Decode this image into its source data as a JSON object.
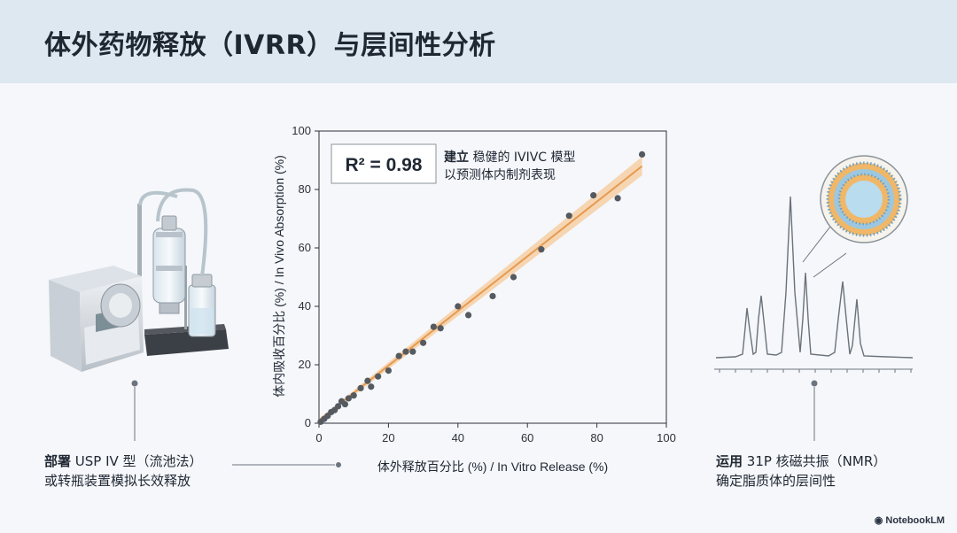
{
  "title": "体外药物释放（IVRR）与层间性分析",
  "left_caption": {
    "bold": "部署",
    "line1": " USP IV 型（流池法）",
    "line2": "或转瓶装置模拟长效释放"
  },
  "right_caption": {
    "bold": "运用",
    "line1": " 31P 核磁共振（NMR）",
    "line2": "确定脂质体的层间性"
  },
  "brand": "NotebookLM",
  "chart_data": {
    "type": "scatter",
    "xlabel": "体外释放百分比 (%) / In Vitro Release (%)",
    "ylabel": "体内吸收百分比 (%) / In Vivo Absorption (%)",
    "xlim": [
      0,
      100
    ],
    "ylim": [
      0,
      100
    ],
    "xticks": [
      0,
      20,
      40,
      60,
      80,
      100
    ],
    "yticks": [
      0,
      20,
      40,
      60,
      80,
      100
    ],
    "grid": false,
    "points": [
      [
        0.5,
        0.5
      ],
      [
        1.5,
        1.5
      ],
      [
        2.5,
        2.5
      ],
      [
        3.5,
        3.8
      ],
      [
        4.5,
        4.5
      ],
      [
        5.5,
        5.8
      ],
      [
        6.5,
        7.5
      ],
      [
        7.5,
        6.5
      ],
      [
        8.5,
        8.5
      ],
      [
        10,
        9.5
      ],
      [
        12,
        12
      ],
      [
        14,
        14.5
      ],
      [
        15,
        12.5
      ],
      [
        17,
        16
      ],
      [
        20,
        18
      ],
      [
        23,
        23
      ],
      [
        25,
        24.5
      ],
      [
        27,
        24.5
      ],
      [
        30,
        27.5
      ],
      [
        33,
        33
      ],
      [
        35,
        32.5
      ],
      [
        40,
        40
      ],
      [
        43,
        37
      ],
      [
        50,
        43.5
      ],
      [
        56,
        50
      ],
      [
        64,
        59.5
      ],
      [
        72,
        71
      ],
      [
        79,
        78
      ],
      [
        86,
        77
      ],
      [
        93,
        92
      ]
    ],
    "fit_line": {
      "x0": 0,
      "y0": 1,
      "x1": 93,
      "y1": 88
    },
    "line_color": "#e69a4f",
    "band_color": "#f5c99a",
    "point_color": "#555a60",
    "annotation": {
      "r2_label": "R² = 0.98",
      "text_bold": "建立",
      "text_line1": " 稳健的 IVIVC 模型",
      "text_line2": "以预测体内制剂表现"
    }
  }
}
